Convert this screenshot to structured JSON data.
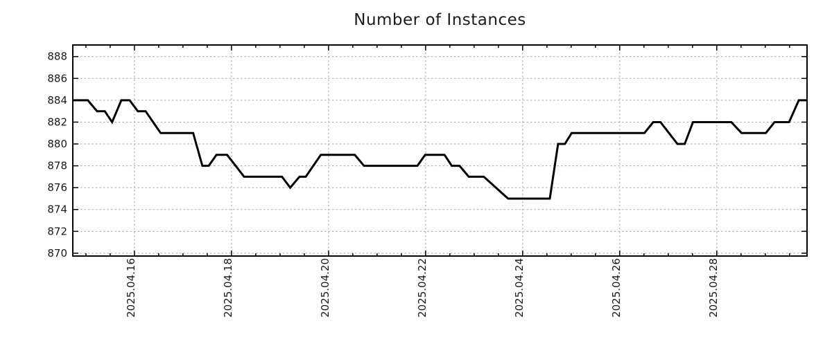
{
  "chart_data": {
    "type": "line",
    "title": "Number of Instances",
    "xlabel": "",
    "ylabel": "",
    "legend": "none",
    "grid": true,
    "x_unit": "date, decimal day of 2025 April",
    "xlim": [
      14.73,
      29.86
    ],
    "ylim": [
      869.74,
      889.06
    ],
    "y_ticks": [
      870,
      872,
      874,
      876,
      878,
      880,
      882,
      884,
      886,
      888
    ],
    "x_major_ticks": [
      {
        "day": 16,
        "label": "2025.04.16"
      },
      {
        "day": 18,
        "label": "2025.04.18"
      },
      {
        "day": 20,
        "label": "2025.04.20"
      },
      {
        "day": 22,
        "label": "2025.04.22"
      },
      {
        "day": 24,
        "label": "2025.04.24"
      },
      {
        "day": 26,
        "label": "2025.04.26"
      },
      {
        "day": 28,
        "label": "2025.04.28"
      }
    ],
    "x_minor_tick_interval_days": 0.5,
    "colors": {
      "line": "#000000",
      "grid": "#a8a8a8",
      "axis": "#000000",
      "text": "#1a1a1a",
      "background": "#ffffff"
    },
    "series": [
      {
        "name": "instances",
        "points": [
          [
            14.73,
            884
          ],
          [
            15.04,
            884
          ],
          [
            15.23,
            883
          ],
          [
            15.39,
            883
          ],
          [
            15.54,
            882
          ],
          [
            15.73,
            884
          ],
          [
            15.9,
            884
          ],
          [
            16.07,
            883
          ],
          [
            16.23,
            883
          ],
          [
            16.54,
            881
          ],
          [
            17.21,
            881
          ],
          [
            17.4,
            878
          ],
          [
            17.53,
            878
          ],
          [
            17.69,
            879
          ],
          [
            17.91,
            879
          ],
          [
            18.26,
            877
          ],
          [
            19.04,
            877
          ],
          [
            19.21,
            876
          ],
          [
            19.4,
            877
          ],
          [
            19.53,
            877
          ],
          [
            19.84,
            879
          ],
          [
            20.54,
            879
          ],
          [
            20.73,
            878
          ],
          [
            21.83,
            878
          ],
          [
            21.99,
            879
          ],
          [
            22.39,
            879
          ],
          [
            22.54,
            878
          ],
          [
            22.7,
            878
          ],
          [
            22.89,
            877
          ],
          [
            23.2,
            877
          ],
          [
            23.7,
            875
          ],
          [
            24.56,
            875
          ],
          [
            24.73,
            880
          ],
          [
            24.87,
            880
          ],
          [
            25.01,
            881
          ],
          [
            26.51,
            881
          ],
          [
            26.69,
            882
          ],
          [
            26.84,
            882
          ],
          [
            27.19,
            880
          ],
          [
            27.34,
            880
          ],
          [
            27.51,
            882
          ],
          [
            28.3,
            882
          ],
          [
            28.51,
            881
          ],
          [
            29.01,
            881
          ],
          [
            29.19,
            882
          ],
          [
            29.49,
            882
          ],
          [
            29.69,
            884
          ],
          [
            29.86,
            884
          ]
        ]
      }
    ]
  }
}
